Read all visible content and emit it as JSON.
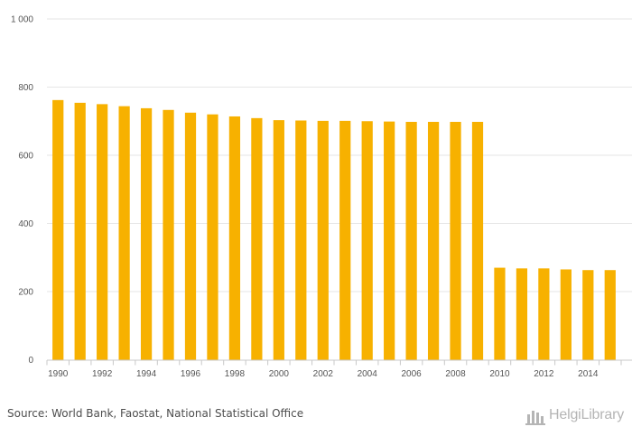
{
  "chart_data": {
    "type": "bar",
    "categories": [
      "1990",
      "1991",
      "1992",
      "1993",
      "1994",
      "1995",
      "1996",
      "1997",
      "1998",
      "1999",
      "2000",
      "2001",
      "2002",
      "2003",
      "2004",
      "2005",
      "2006",
      "2007",
      "2008",
      "2009",
      "2010",
      "2011",
      "2012",
      "2013",
      "2014",
      "2015"
    ],
    "x_tick_labels": [
      "1990",
      "1992",
      "1994",
      "1996",
      "1998",
      "2000",
      "2002",
      "2004",
      "2006",
      "2008",
      "2010",
      "2012",
      "2014"
    ],
    "values": [
      762,
      754,
      750,
      744,
      738,
      733,
      725,
      720,
      714,
      709,
      703,
      702,
      701,
      701,
      700,
      699,
      698,
      698,
      698,
      698,
      270,
      268,
      268,
      265,
      263,
      263
    ],
    "y_ticks": [
      0,
      200,
      400,
      600,
      800,
      1000
    ],
    "y_tick_labels": [
      "0",
      "200",
      "400",
      "600",
      "800",
      "1 000"
    ],
    "ylim": [
      0,
      1000
    ],
    "grid": true,
    "legend": "none",
    "bar_color": "#f7b100",
    "grid_color": "#e6e6e6",
    "axis_color": "#c8c8c8"
  },
  "footer": {
    "source": "Source: World Bank, Faostat, National Statistical Office",
    "brand": "HelgiLibrary",
    "brand_icon": "library-logo-icon"
  }
}
